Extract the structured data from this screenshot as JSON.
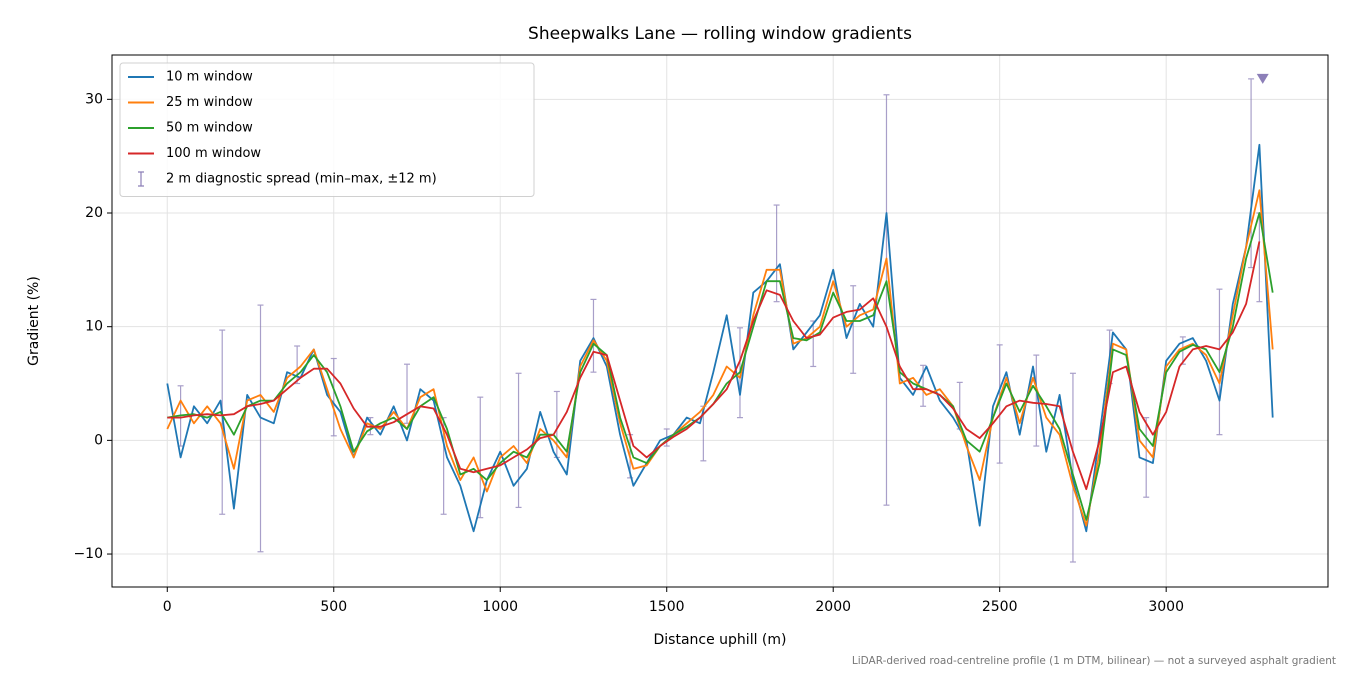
{
  "chart_data": {
    "type": "line",
    "title": "Sheepwalks Lane — rolling window gradients",
    "x_label": "Distance uphill (m)",
    "y_label": "Gradient (%)",
    "footnote": "LiDAR-derived road-centreline profile (1 m DTM, bilinear) — not a surveyed asphalt gradient",
    "xlim": [
      -166,
      3486
    ],
    "ylim": [
      -12.9,
      33.9
    ],
    "xticks": [
      0,
      500,
      1000,
      1500,
      2000,
      2500,
      3000
    ],
    "yticks": [
      {
        "value": -10,
        "label": "−10"
      },
      0,
      10,
      20,
      30
    ],
    "grid": true,
    "legend": "upper left",
    "x": [
      0,
      40,
      80,
      120,
      160,
      200,
      240,
      280,
      320,
      360,
      400,
      440,
      480,
      520,
      560,
      600,
      640,
      680,
      720,
      760,
      800,
      840,
      880,
      920,
      960,
      1000,
      1040,
      1080,
      1120,
      1160,
      1200,
      1240,
      1280,
      1320,
      1360,
      1400,
      1440,
      1480,
      1520,
      1560,
      1600,
      1640,
      1680,
      1720,
      1760,
      1800,
      1840,
      1880,
      1920,
      1960,
      2000,
      2040,
      2080,
      2120,
      2160,
      2200,
      2240,
      2280,
      2320,
      2360,
      2400,
      2440,
      2480,
      2520,
      2560,
      2600,
      2640,
      2680,
      2720,
      2760,
      2800,
      2840,
      2880,
      2920,
      2960,
      3000,
      3040,
      3080,
      3120,
      3160,
      3200,
      3240,
      3280,
      3320
    ],
    "series": [
      {
        "name": "10 m window",
        "color": "#1f77b4",
        "values": [
          5,
          -1.5,
          3,
          1.5,
          3.5,
          -6,
          4,
          2,
          1.5,
          6,
          5.5,
          8,
          4,
          2.5,
          -1.5,
          2,
          0.5,
          3,
          0,
          4.5,
          3.5,
          -1.5,
          -4,
          -8,
          -3.5,
          -1,
          -4,
          -2.5,
          2.5,
          -1,
          -3,
          7,
          9,
          6.5,
          0.5,
          -4,
          -2,
          0,
          0.5,
          2,
          1.5,
          6,
          11,
          4,
          13,
          14,
          15.5,
          8,
          9.5,
          11,
          15,
          9,
          12,
          10,
          20,
          5.5,
          4,
          6.5,
          3.5,
          2,
          0,
          -7.5,
          3,
          6,
          0.5,
          6.5,
          -1,
          4,
          -3.5,
          -8,
          0.5,
          9.5,
          8,
          -1.5,
          -2,
          7,
          8.5,
          9,
          7,
          3.5,
          12,
          17,
          26,
          2
        ]
      },
      {
        "name": "25 m window",
        "color": "#ff7f0e",
        "values": [
          1,
          3.5,
          1.5,
          3,
          1.5,
          -2.5,
          3.5,
          4,
          2.5,
          5.5,
          6.5,
          8,
          4.5,
          1,
          -1.5,
          1.5,
          1,
          2.5,
          1,
          3.8,
          4.5,
          -0.5,
          -3.5,
          -1.5,
          -4.5,
          -1.5,
          -0.5,
          -2,
          1,
          0,
          -1.5,
          6.5,
          8.8,
          7,
          1.5,
          -2.5,
          -2.2,
          -0.5,
          0.5,
          1.5,
          2.5,
          4,
          6.5,
          5.5,
          11,
          15,
          15,
          8.5,
          9,
          10,
          14,
          10,
          11,
          11.5,
          16,
          5,
          5.5,
          4,
          4.5,
          3,
          -0.5,
          -3.5,
          2,
          5.5,
          1.5,
          5.5,
          2,
          0.5,
          -4,
          -7.5,
          -1,
          8.5,
          8,
          0,
          -1.5,
          6.5,
          8,
          8.5,
          7.5,
          5,
          11,
          17,
          22,
          8
        ]
      },
      {
        "name": "50 m window",
        "color": "#2ca02c",
        "values": [
          2,
          2.2,
          2.3,
          2,
          2.5,
          0.5,
          3,
          3.5,
          3.5,
          5,
          6,
          7.5,
          6,
          3,
          -1,
          0.8,
          1.5,
          2,
          1,
          3,
          3.8,
          1,
          -3,
          -2.5,
          -3.5,
          -2,
          -1,
          -1.5,
          0.5,
          0.5,
          -1,
          6,
          8.5,
          7.5,
          2,
          -1.5,
          -2,
          -0.5,
          0.5,
          1.2,
          2,
          3.2,
          5,
          6,
          10,
          14,
          14,
          9,
          8.8,
          9.5,
          13,
          10.5,
          10.5,
          11,
          14,
          6,
          5,
          4.5,
          4,
          3,
          0,
          -1,
          2,
          5,
          2.5,
          4.8,
          3,
          1,
          -3,
          -7,
          -2,
          8,
          7.5,
          1,
          -0.5,
          6,
          7.8,
          8.4,
          8,
          6,
          10,
          16,
          20,
          13
        ]
      },
      {
        "name": "100 m window",
        "color": "#d62728",
        "values": [
          2,
          2,
          2.2,
          2.3,
          2.2,
          2.3,
          3,
          3.2,
          3.5,
          4.5,
          5.5,
          6.3,
          6.3,
          5,
          2.8,
          1.2,
          1.2,
          1.6,
          2.3,
          3,
          2.8,
          0.5,
          -2.5,
          -2.8,
          -2.5,
          -2.2,
          -1.5,
          -0.8,
          0.2,
          0.5,
          2.5,
          5.5,
          7.8,
          7.5,
          3.5,
          -0.5,
          -1.5,
          -0.5,
          0.3,
          1,
          2,
          3.2,
          4.5,
          7,
          10.5,
          13.2,
          12.8,
          10.5,
          9,
          9.3,
          10.8,
          11.3,
          11.5,
          12.5,
          10,
          6.5,
          4.5,
          4.5,
          4,
          2.8,
          1,
          0.2,
          1.5,
          3,
          3.5,
          3.3,
          3.2,
          3,
          -1,
          -4.3,
          0,
          6,
          6.5,
          2.5,
          0.5,
          2.5,
          6.5,
          8,
          8.3,
          8,
          9.5,
          12,
          17.5,
          null
        ]
      }
    ],
    "errorbars": {
      "name": "2 m diagnostic spread (min–max, ±12 m)",
      "color": "#8c7fb8",
      "x": [
        40,
        165,
        280,
        390,
        500,
        610,
        720,
        830,
        940,
        1055,
        1170,
        1280,
        1390,
        1500,
        1610,
        1720,
        1830,
        1940,
        2060,
        2160,
        2270,
        2380,
        2500,
        2610,
        2720,
        2830,
        2940,
        3050,
        3160,
        3255,
        3280
      ],
      "low": [
        -0.5,
        -6.5,
        -9.8,
        5,
        0.4,
        0.5,
        1.5,
        -6.5,
        -6.8,
        -5.9,
        -1.5,
        6,
        -3.3,
        -0.5,
        -1.8,
        2,
        12.2,
        6.5,
        5.9,
        -5.7,
        3,
        1,
        -2,
        -0.5,
        -10.7,
        5,
        -5,
        6.7,
        0.5,
        15.2,
        12.2
      ],
      "high": [
        4.8,
        9.7,
        11.9,
        8.3,
        7.2,
        2,
        6.7,
        2,
        3.8,
        5.9,
        4.3,
        12.4,
        0.5,
        1,
        3,
        9.9,
        20.7,
        10.5,
        13.6,
        30.4,
        6.6,
        5.1,
        8.4,
        7.5,
        5.9,
        9.7,
        2,
        9.1,
        13.3,
        31.8,
        20
      ]
    },
    "peak_marker": {
      "x": 3290,
      "y": 31.8,
      "color": "#8c7fb8"
    }
  }
}
